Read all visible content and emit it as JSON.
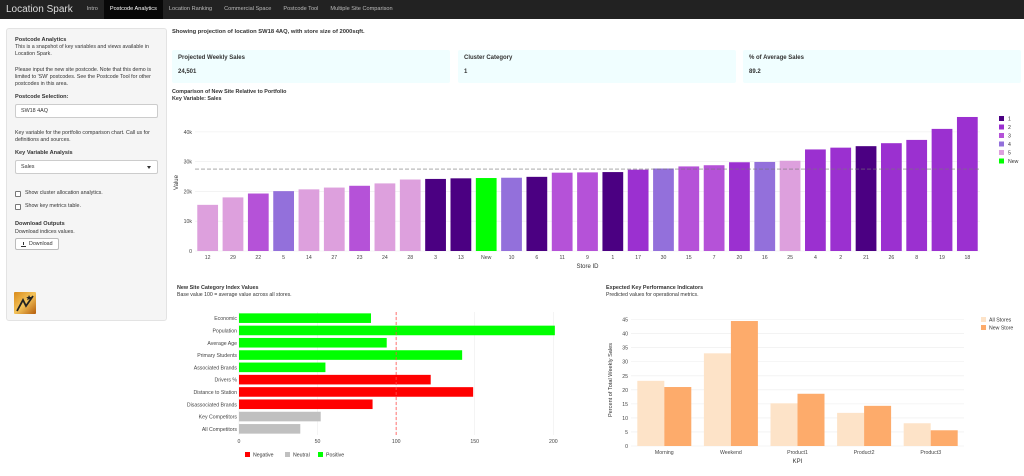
{
  "navbar": {
    "brand": "Location Spark",
    "items": [
      "Intro",
      "Postcode Analytics",
      "Location Ranking",
      "Commercial Space",
      "Postcode Tool",
      "Multiple Site Comparison"
    ],
    "active_index": 1
  },
  "sidebar": {
    "title": "Postcode Analytics",
    "intro": "This is a snapshot of key variables and views available in Location Spark.",
    "note": "Please input the new site postcode. Note that this demo is limited to 'SW' postcodes. See the Postcode Tool for other postcodes in this area.",
    "postcode_label": "Postcode Selection:",
    "postcode_value": "SW18 4AQ",
    "key_var_note": "Key variable for the portfolio comparison chart. Call us for definitions and sources.",
    "key_var_label": "Key Variable Analysis",
    "key_var_value": "Sales",
    "cb_cluster": "Show cluster allocation analytics.",
    "cb_metrics": "Show key metrics table.",
    "download_title": "Download Outputs",
    "download_text": "Download indices values.",
    "download_button": "Download",
    "logo_icon": "location-spark-logo"
  },
  "main": {
    "headline": "Showing projection of location SW18 4AQ, with store size of 2000sqft.",
    "kpis": [
      {
        "title": "Projected Weekly Sales",
        "value": "24,501"
      },
      {
        "title": "Cluster Category",
        "value": "1"
      },
      {
        "title": "% of Average Sales",
        "value": "89.2"
      }
    ]
  },
  "colors": {
    "c1": "#4b0082",
    "c2": "#9b30d0",
    "c3": "#b552d8",
    "c4": "#9370db",
    "c5": "#dda0dd",
    "new": "#00ff00"
  },
  "chart_data": [
    {
      "type": "bar",
      "title": "Comparison of New Site Relative to Portfolio",
      "subtitle": "Key Variable: Sales",
      "xlabel": "Store ID",
      "ylabel": "Value",
      "ylim": [
        0,
        46000
      ],
      "yticks": [
        0,
        10000,
        20000,
        30000,
        40000
      ],
      "ytick_labels": [
        "0",
        "10k",
        "20k",
        "30k",
        "40k"
      ],
      "reference_line": 27500,
      "legend": [
        "1",
        "2",
        "3",
        "4",
        "5",
        "New"
      ],
      "legend_position": "right",
      "categories": [
        "12",
        "29",
        "22",
        "5",
        "14",
        "27",
        "23",
        "24",
        "28",
        "3",
        "13",
        "New",
        "10",
        "6",
        "11",
        "9",
        "1",
        "17",
        "30",
        "15",
        "7",
        "20",
        "16",
        "25",
        "4",
        "2",
        "21",
        "26",
        "8",
        "19",
        "18"
      ],
      "values": [
        15500,
        18000,
        19300,
        20100,
        20700,
        21300,
        21900,
        22700,
        24000,
        24200,
        24400,
        24500,
        24600,
        24900,
        26300,
        26400,
        26500,
        27300,
        27700,
        28400,
        28800,
        29800,
        29900,
        30300,
        34100,
        34700,
        35200,
        36200,
        37300,
        41000,
        45000
      ],
      "clusters": [
        "5",
        "5",
        "3",
        "4",
        "5",
        "5",
        "3",
        "5",
        "5",
        "1",
        "1",
        "New",
        "4",
        "1",
        "3",
        "3",
        "1",
        "2",
        "4",
        "3",
        "3",
        "2",
        "4",
        "5",
        "2",
        "2",
        "1",
        "2",
        "2",
        "2",
        "2"
      ]
    },
    {
      "type": "bar",
      "orientation": "horizontal",
      "title": "New Site Category Index Values",
      "subtitle": "Base value 100 = average value across all stores.",
      "categories": [
        "Economic",
        "Population",
        "Average Age",
        "Primary Students",
        "Associated Brands",
        "Drivers %",
        "Distance to Station",
        "Disassociated Brands",
        "Key Competitors",
        "All Competitors"
      ],
      "values": [
        84,
        201,
        94,
        142,
        55,
        122,
        149,
        85,
        52,
        39
      ],
      "classes": [
        "Positive",
        "Positive",
        "Positive",
        "Positive",
        "Positive",
        "Negative",
        "Negative",
        "Negative",
        "Neutral",
        "Neutral"
      ],
      "xlim": [
        0,
        210
      ],
      "xticks": [
        0,
        50,
        100,
        150,
        200
      ],
      "reference_line": 100,
      "legend": [
        "Negative",
        "Neutral",
        "Positive"
      ],
      "legend_position": "bottom"
    },
    {
      "type": "bar",
      "title": "Expected Key Performance Indicators",
      "subtitle": "Predicted values for operational metrics.",
      "xlabel": "KPI",
      "ylabel": "Percent of Total Weekly Sales",
      "categories": [
        "Morning",
        "Weekend",
        "Product1",
        "Product2",
        "Product3"
      ],
      "series": [
        {
          "name": "All Stores",
          "values": [
            23.2,
            33,
            15.2,
            11.8,
            8.1
          ]
        },
        {
          "name": "New Store",
          "values": [
            21,
            44.5,
            18.6,
            14.3,
            5.6
          ]
        }
      ],
      "ylim": [
        0,
        47
      ],
      "yticks": [
        0,
        5,
        10,
        15,
        20,
        25,
        30,
        35,
        40,
        45
      ],
      "legend_position": "top-right"
    }
  ]
}
